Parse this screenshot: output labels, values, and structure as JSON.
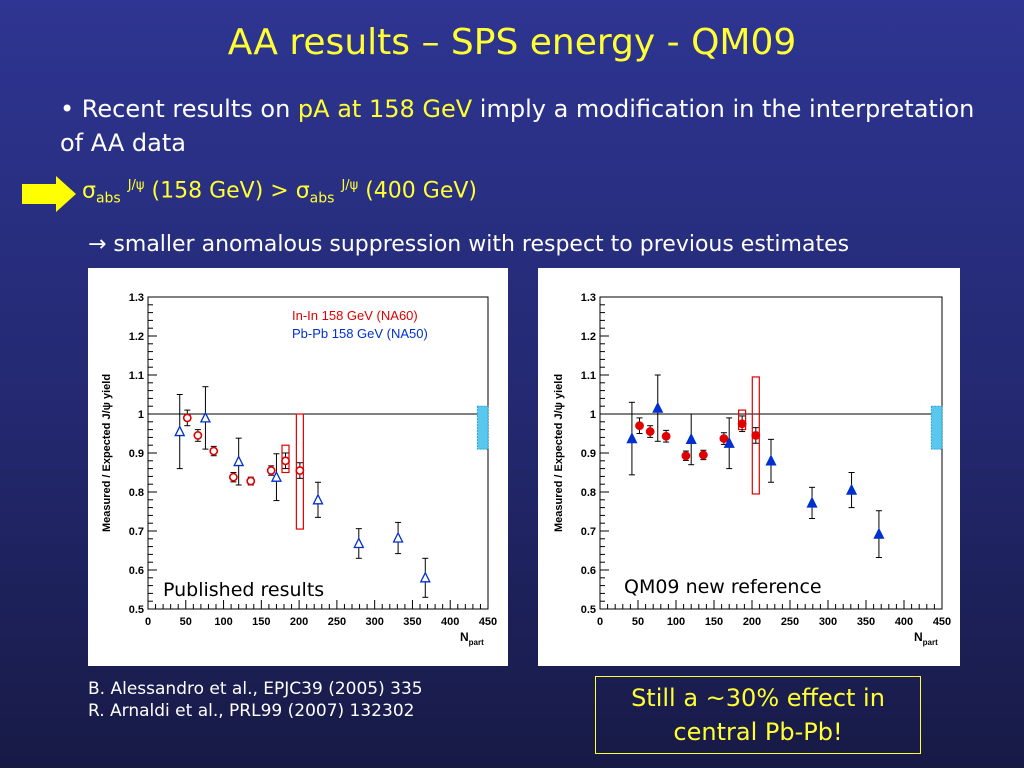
{
  "slide": {
    "title": "AA results – SPS energy - QM09",
    "bullet": {
      "prefix": "• Recent results on ",
      "highlight": "pA at 158 GeV",
      "suffix": "  imply a modification in the interpretation of AA data"
    },
    "sigma_line": {
      "sigma": "σ",
      "sub": "abs",
      "sup": "J/ψ",
      "left_energy": " (158 GeV) > ",
      "right_energy": " (400 GeV)"
    },
    "arrow_line": "→ smaller anomalous suppression with respect to previous estimates",
    "references": [
      "B. Alessandro et al., EPJC39 (2005) 335",
      "R. Arnaldi et al., PRL99 (2007) 132302"
    ],
    "note_lines": [
      "Still a ~30% effect in",
      "central Pb-Pb!"
    ],
    "colors": {
      "title": "#ffff33",
      "highlight": "#ffff33",
      "arrow": "#ffff00",
      "inin": "#e00000",
      "pbpb": "#0030d0"
    }
  },
  "chart_data": [
    {
      "type": "scatter",
      "panel_label": "Published results",
      "ylabel": "Measured / Expected J/ψ yield",
      "xlabel": "N",
      "xlabel_sub": "part",
      "xlim": [
        0,
        450
      ],
      "ylim": [
        0.5,
        1.3
      ],
      "xticks": [
        "0",
        "50",
        "100",
        "150",
        "200",
        "250",
        "300",
        "350",
        "400",
        "450"
      ],
      "yticks": [
        "0.5",
        "0.6",
        "0.7",
        "0.8",
        "0.9",
        "1",
        "1.1",
        "1.2",
        "1.3"
      ],
      "reference_line": 1,
      "normalization_box": {
        "x": [
          436,
          450
        ],
        "y": [
          0.91,
          1.02
        ]
      },
      "legend": [
        "In-In 158 GeV (NA60)",
        "Pb-Pb 158 GeV (NA50)"
      ],
      "series": [
        {
          "name": "In-In 158 GeV (NA60)",
          "marker": "open-circle",
          "points": [
            {
              "x": 52,
              "y": 0.99,
              "err": 0.02
            },
            {
              "x": 66,
              "y": 0.945,
              "err": 0.015
            },
            {
              "x": 87,
              "y": 0.905,
              "err": 0.012
            },
            {
              "x": 113,
              "y": 0.838,
              "err": 0.012
            },
            {
              "x": 136,
              "y": 0.828,
              "err": 0.01
            },
            {
              "x": 163,
              "y": 0.855,
              "err": 0.012
            },
            {
              "x": 182,
              "y": 0.88,
              "err": 0.02
            },
            {
              "x": 201,
              "y": 0.855,
              "err": 0.02
            }
          ],
          "syst_boxes": [
            {
              "x": 182,
              "y_low": 0.85,
              "y_high": 0.92
            },
            {
              "x": 201,
              "y_low": 0.705,
              "y_high": 1.0
            }
          ]
        },
        {
          "name": "Pb-Pb 158 GeV (NA50)",
          "marker": "open-triangle",
          "points": [
            {
              "x": 42,
              "y": 0.955,
              "err": 0.095
            },
            {
              "x": 76,
              "y": 0.99,
              "err": 0.08
            },
            {
              "x": 120,
              "y": 0.878,
              "err": 0.06
            },
            {
              "x": 170,
              "y": 0.838,
              "err": 0.06
            },
            {
              "x": 225,
              "y": 0.78,
              "err": 0.045
            },
            {
              "x": 279,
              "y": 0.668,
              "err": 0.038
            },
            {
              "x": 331,
              "y": 0.682,
              "err": 0.04
            },
            {
              "x": 367,
              "y": 0.58,
              "err": 0.05
            }
          ]
        }
      ]
    },
    {
      "type": "scatter",
      "panel_label": "QM09 new reference",
      "ylabel": "Measured / Expected J/ψ yield",
      "xlabel": "N",
      "xlabel_sub": "part",
      "xlim": [
        0,
        450
      ],
      "ylim": [
        0.5,
        1.3
      ],
      "xticks": [
        "0",
        "50",
        "100",
        "150",
        "200",
        "250",
        "300",
        "350",
        "400",
        "450"
      ],
      "yticks": [
        "0.5",
        "0.6",
        "0.7",
        "0.8",
        "0.9",
        "1",
        "1.1",
        "1.2",
        "1.3"
      ],
      "reference_line": 1,
      "normalization_box": {
        "x": [
          436,
          450
        ],
        "y": [
          0.91,
          1.02
        ]
      },
      "series": [
        {
          "name": "",
          "marker": "filled-circle",
          "color_key": "inin",
          "points": [
            {
              "x": 52,
              "y": 0.97,
              "err": 0.02
            },
            {
              "x": 66,
              "y": 0.955,
              "err": 0.015
            },
            {
              "x": 87,
              "y": 0.943,
              "err": 0.015
            },
            {
              "x": 113,
              "y": 0.893,
              "err": 0.012
            },
            {
              "x": 136,
              "y": 0.895,
              "err": 0.012
            },
            {
              "x": 163,
              "y": 0.937,
              "err": 0.015
            },
            {
              "x": 187,
              "y": 0.975,
              "err": 0.02
            },
            {
              "x": 205,
              "y": 0.945,
              "err": 0.02
            }
          ],
          "syst_boxes": [
            {
              "x": 187,
              "y_low": 0.96,
              "y_high": 1.01
            },
            {
              "x": 205,
              "y_low": 0.795,
              "y_high": 1.095
            }
          ]
        },
        {
          "name": "",
          "marker": "filled-triangle",
          "color_key": "pbpb",
          "points": [
            {
              "x": 42,
              "y": 0.937,
              "err": 0.093
            },
            {
              "x": 76,
              "y": 1.015,
              "err": 0.085
            },
            {
              "x": 120,
              "y": 0.935,
              "err": 0.065
            },
            {
              "x": 170,
              "y": 0.925,
              "err": 0.065
            },
            {
              "x": 225,
              "y": 0.88,
              "err": 0.055
            },
            {
              "x": 279,
              "y": 0.772,
              "err": 0.04
            },
            {
              "x": 331,
              "y": 0.805,
              "err": 0.045
            },
            {
              "x": 367,
              "y": 0.692,
              "err": 0.06
            }
          ]
        }
      ]
    }
  ]
}
